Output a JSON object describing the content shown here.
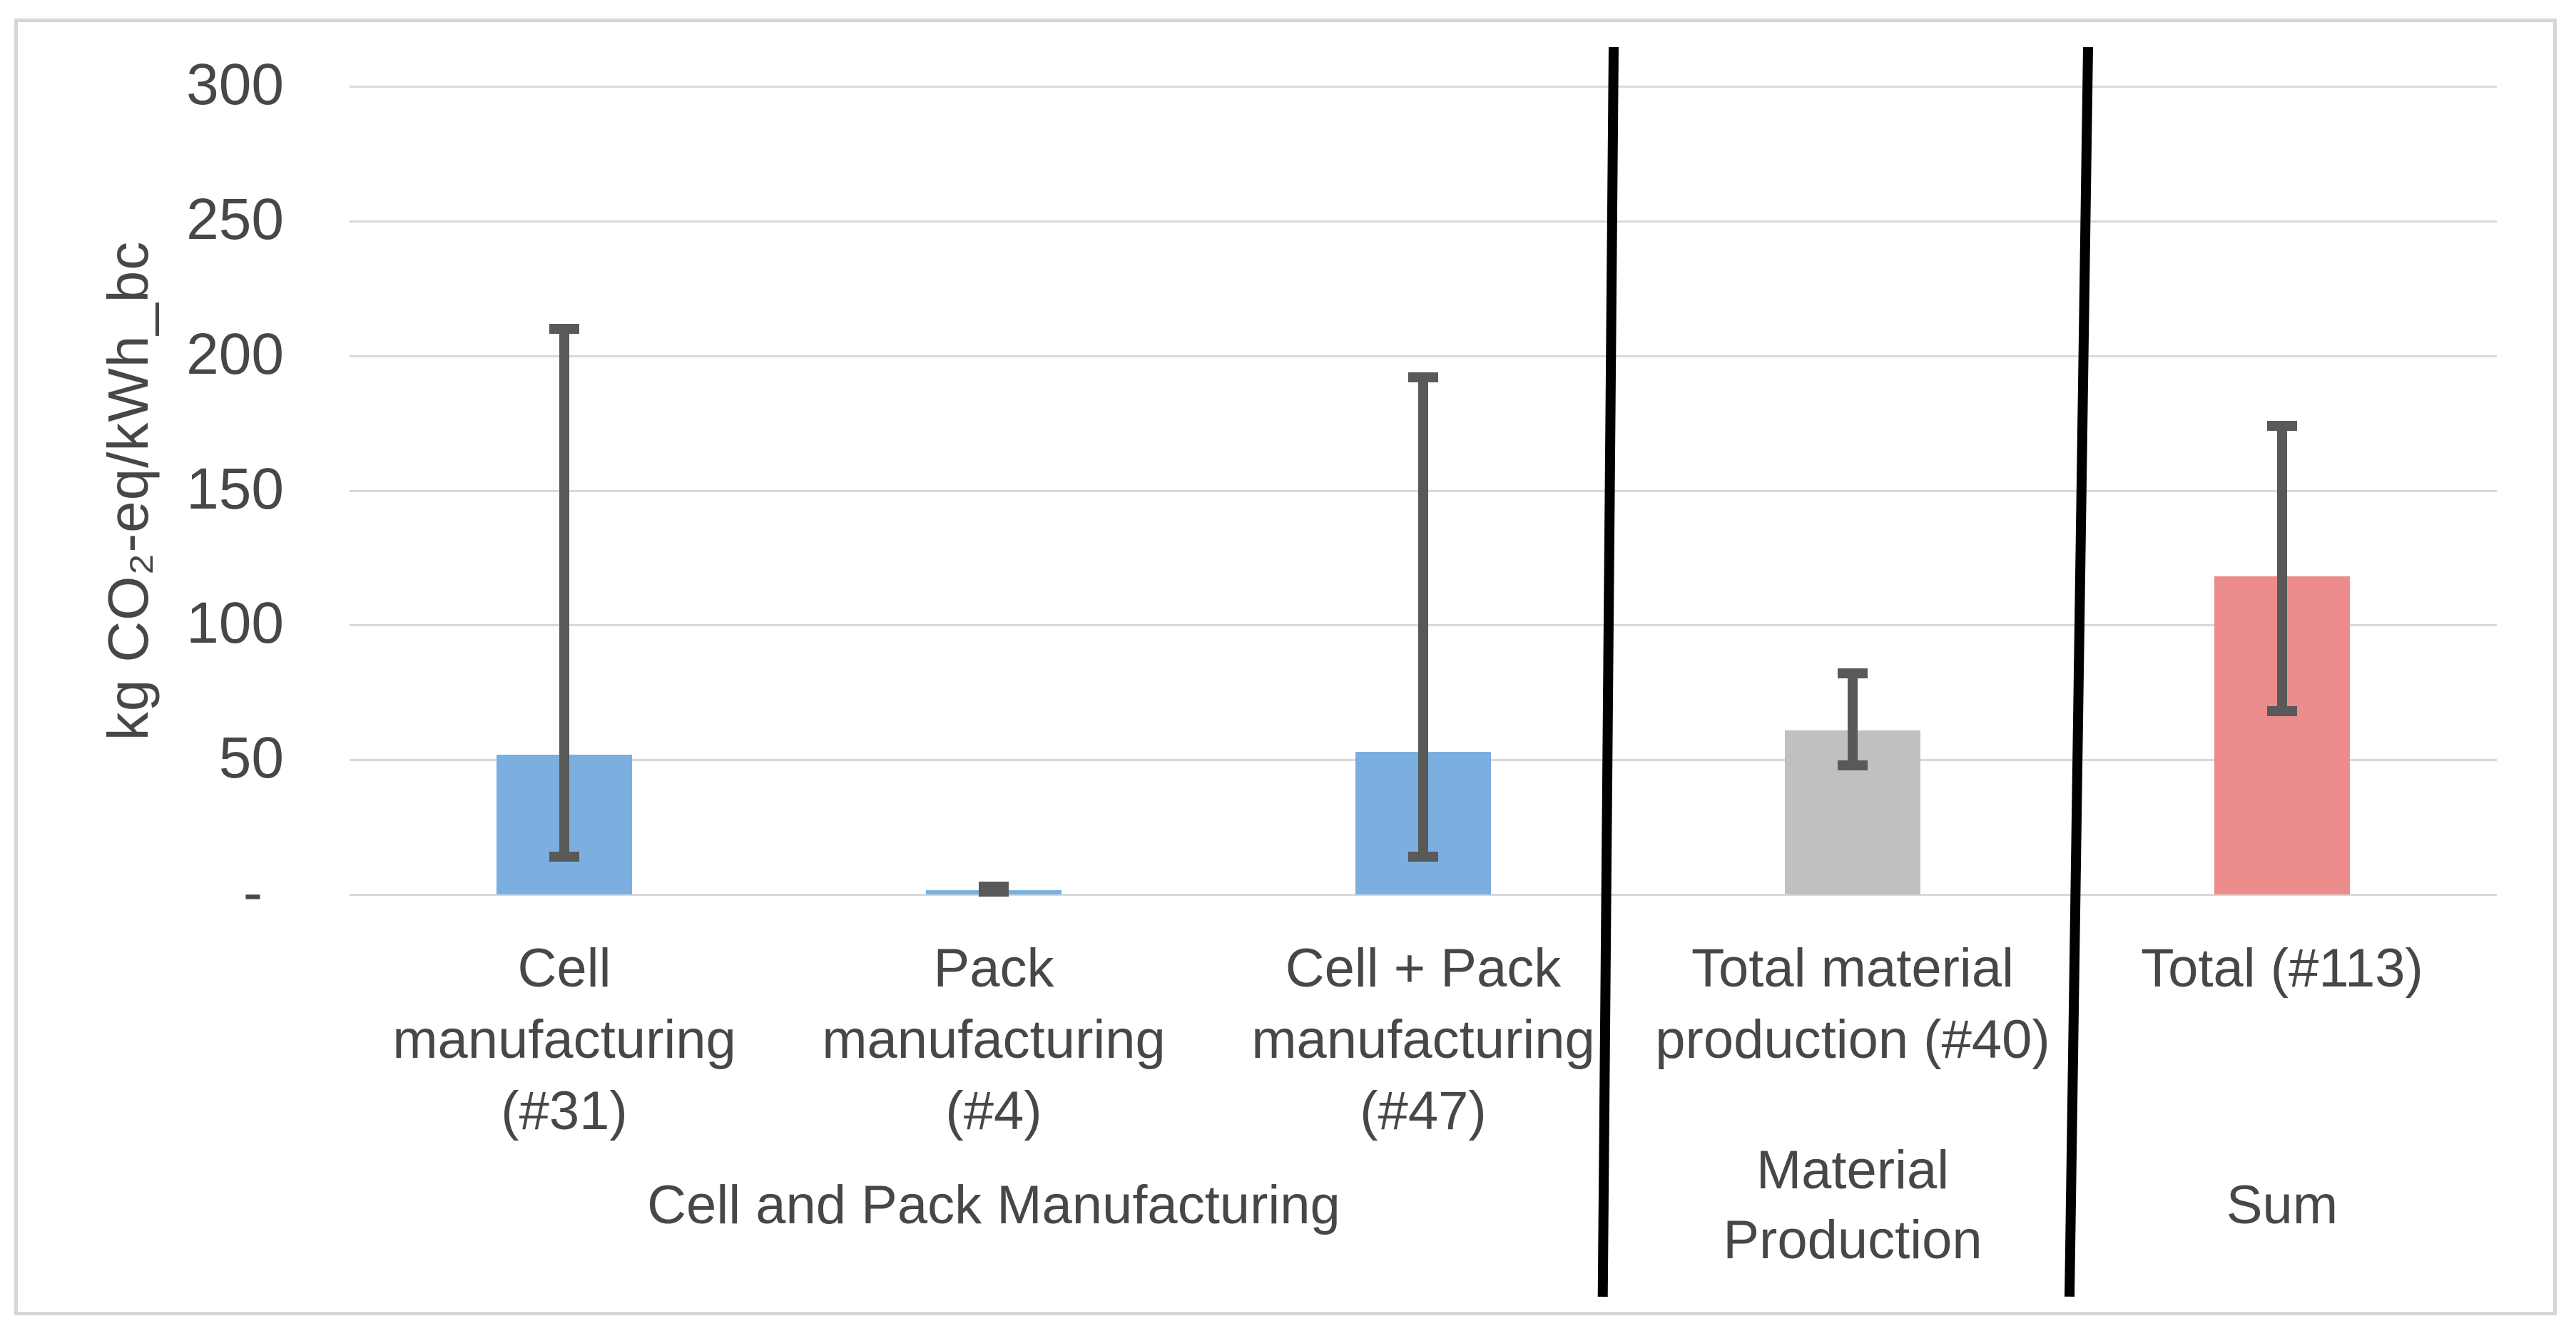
{
  "chart_data": {
    "type": "bar",
    "title": "",
    "xlabel": "",
    "ylabel": "kg CO₂-eq/kWh_bc",
    "ylim": [
      0,
      300
    ],
    "ytick_interval": 50,
    "ytick_labels": [
      "300",
      "250",
      "200",
      "150",
      "100",
      "50",
      "-"
    ],
    "grid": true,
    "legend": "none",
    "categories": [
      "Cell\nmanufacturing\n(#31)",
      "Pack\nmanufacturing\n(#4)",
      "Cell + Pack\nmanufacturing\n(#47)",
      "Total material\nproduction (#40)",
      "Total (#113)"
    ],
    "values": [
      52,
      1.5,
      53,
      61,
      118
    ],
    "error_low": [
      14,
      1,
      14,
      48,
      68
    ],
    "error_high": [
      210,
      3,
      192,
      82,
      174
    ],
    "bar_colors": [
      "#7aafe0",
      "#7aafe0",
      "#7aafe0",
      "#c0c0c0",
      "#ed8c8c"
    ],
    "group_labels": [
      {
        "text": "Cell and Pack Manufacturing",
        "span": 3
      },
      {
        "text": "Material\nProduction",
        "span": 1
      },
      {
        "text": "Sum",
        "span": 1
      }
    ],
    "colors": {
      "error_bar": "#595959",
      "gridline": "#d9d9d9",
      "divider": "#000000",
      "frame_border": "#d6d6d6",
      "text": "#474747"
    }
  }
}
